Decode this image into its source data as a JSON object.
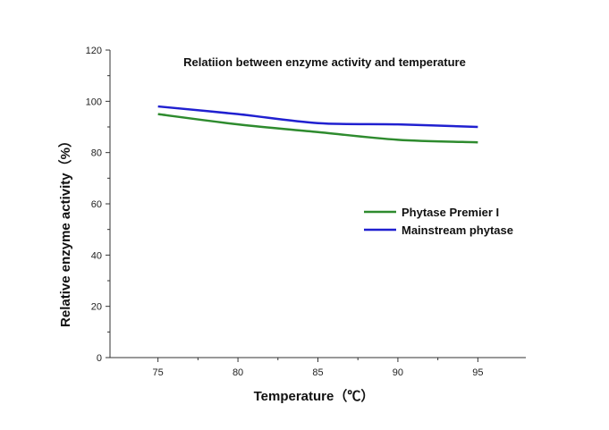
{
  "chart_data": {
    "type": "line",
    "title": "Relatiion between  enzyme activity and temperature",
    "xlabel": "Temperature（℃）",
    "ylabel": "Relative enzyme activity（%）",
    "xlim": [
      72,
      98
    ],
    "ylim": [
      0,
      120
    ],
    "x_ticks": [
      "75",
      "80",
      "85",
      "90",
      "95"
    ],
    "y_ticks": [
      "0",
      "20",
      "40",
      "60",
      "80",
      "100",
      "120"
    ],
    "grid": false,
    "legend": "center-right",
    "series": [
      {
        "name": "Phytase Premier I",
        "color": "#2e8b2e",
        "x": [
          75,
          80,
          85,
          90,
          95
        ],
        "y": [
          95,
          91,
          88,
          85,
          84
        ]
      },
      {
        "name": "Mainstream phytase",
        "color": "#2020d0",
        "x": [
          75,
          80,
          85,
          90,
          95
        ],
        "y": [
          98,
          95,
          91.5,
          91,
          90
        ]
      }
    ]
  }
}
